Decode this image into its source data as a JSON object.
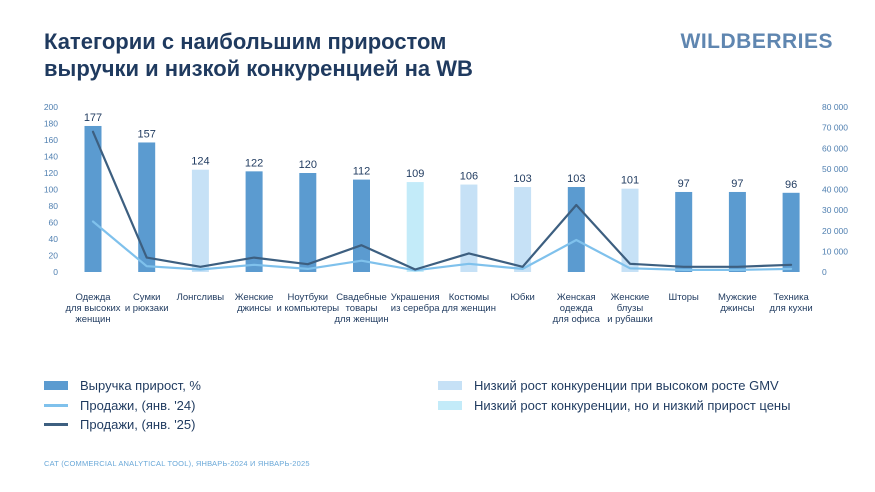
{
  "header": {
    "title_line1": "Категории с наибольшим приростом",
    "title_line2": "выручки и низкой конкуренцией на WB",
    "brand": "WILDBERRIES"
  },
  "colors": {
    "bar_dark": "#5b9bd0",
    "bar_light": "#c6e1f6",
    "bar_cyan": "#c3ebf9",
    "line_24": "#7fc1ec",
    "line_25": "#3d5f80",
    "text": "#1f3a5f",
    "axis_text": "#4f7fb0"
  },
  "chart_data": {
    "type": "bar",
    "categories": [
      [
        "Одежда",
        "для высоких",
        "женщин"
      ],
      [
        "Сумки",
        "и рюкзаки"
      ],
      [
        "Лонгсливы"
      ],
      [
        "Женские",
        "джинсы"
      ],
      [
        "Ноутбуки",
        "и компьютеры"
      ],
      [
        "Свадебные",
        "товары",
        "для женщин"
      ],
      [
        "Украшения",
        "из серебра"
      ],
      [
        "Костюмы",
        "для женщин"
      ],
      [
        "Юбки"
      ],
      [
        "Женская",
        "одежда",
        "для офиса"
      ],
      [
        "Женские",
        "блузы",
        "и рубашки"
      ],
      [
        "Шторы"
      ],
      [
        "Мужские",
        "джинсы"
      ],
      [
        "Техника",
        "для кухни"
      ]
    ],
    "bar_groups": [
      "dark",
      "dark",
      "light",
      "dark",
      "dark",
      "dark",
      "cyan",
      "light",
      "light",
      "dark",
      "light",
      "dark",
      "dark",
      "dark"
    ],
    "series": [
      {
        "name": "Выручка прирост, %",
        "type": "bar",
        "axis": "left",
        "values": [
          177,
          157,
          124,
          122,
          120,
          112,
          109,
          106,
          103,
          103,
          101,
          97,
          97,
          96
        ]
      },
      {
        "name": "Продажи, (янв. '24)",
        "type": "line",
        "axis": "right",
        "values": [
          24500,
          2800,
          1200,
          3500,
          1500,
          5500,
          800,
          4000,
          1500,
          15500,
          1800,
          1000,
          1000,
          1500
        ]
      },
      {
        "name": "Продажи, (янв. '25)",
        "type": "line",
        "axis": "right",
        "values": [
          68000,
          7000,
          2500,
          7000,
          3800,
          13000,
          1200,
          9000,
          2500,
          32500,
          4000,
          2500,
          2500,
          3500
        ]
      }
    ],
    "ylim": [
      0,
      200
    ],
    "yticks": [
      0,
      20,
      40,
      60,
      80,
      100,
      120,
      140,
      160,
      180,
      200
    ],
    "y2lim": [
      0,
      80000
    ],
    "y2ticks": [
      "0",
      "10 000",
      "20 000",
      "30 000",
      "40 000",
      "50 000",
      "60 000",
      "70 000",
      "80 000"
    ],
    "grid": false
  },
  "legend": {
    "revenue": "Выручка прирост, %",
    "sales24": "Продажи, (янв. '24)",
    "sales25": "Продажи, (янв. '25)",
    "low_comp_high_gmv": "Низкий рост конкуренции при высоком росте GMV",
    "low_comp_low_price": "Низкий рост конкуренции, но и низкий прирост цены"
  },
  "footer": "CAT (COMMERCIAL ANALYTICAL TOOL), ЯНВАРЬ-2024 И ЯНВАРЬ-2025"
}
